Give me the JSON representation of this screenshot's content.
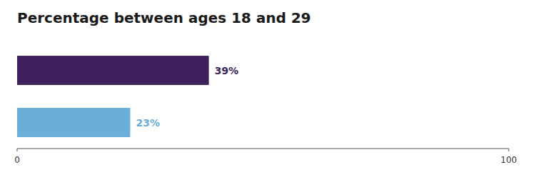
{
  "chart_data": {
    "type": "bar",
    "orientation": "horizontal",
    "title": "Percentage between ages 18 and 29",
    "categories": [
      null,
      null
    ],
    "values": [
      39,
      23
    ],
    "value_labels": [
      "39%",
      "23%"
    ],
    "data_labels": true,
    "colors": [
      "#3d1f5c",
      "#6baed6"
    ],
    "xlim": [
      0,
      100
    ],
    "xticks": [
      0,
      100
    ],
    "grid": false,
    "tick_labels": "x"
  }
}
